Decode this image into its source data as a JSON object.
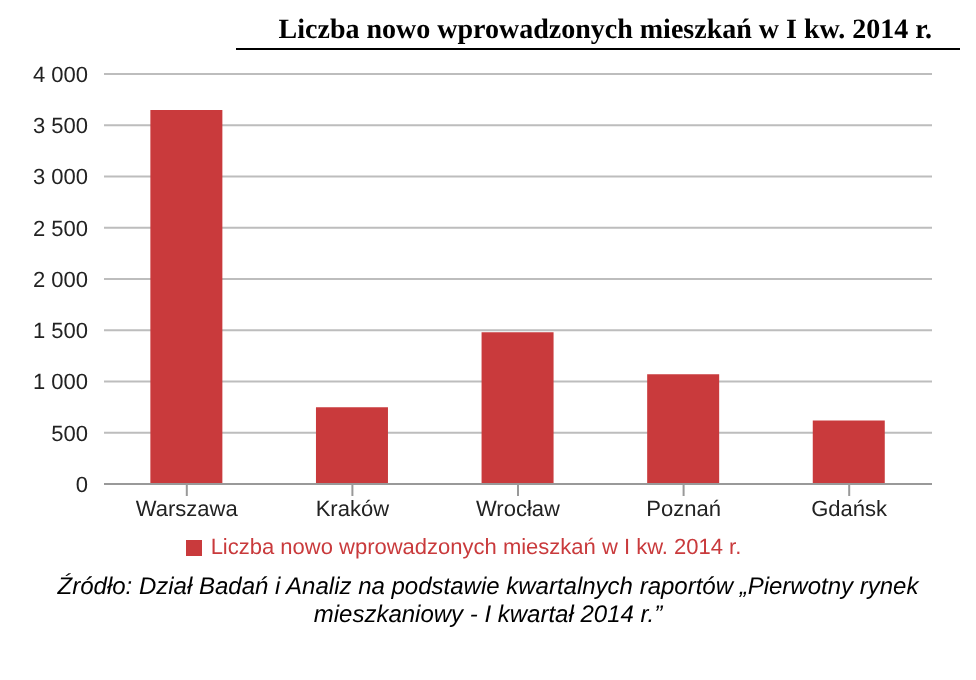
{
  "chart_data": {
    "type": "bar",
    "title": "Liczba nowo wprowadzonych mieszkań w I kw. 2014 r.",
    "categories": [
      "Warszawa",
      "Kraków",
      "Wrocław",
      "Poznań",
      "Gdańsk"
    ],
    "series": [
      {
        "name": "Liczba nowo wprowadzonych mieszkań w I kw. 2014 r.",
        "color": "#c93a3c",
        "values": [
          3650,
          750,
          1480,
          1070,
          620
        ]
      }
    ],
    "ylim": [
      0,
      4000
    ],
    "yticks": [
      0,
      {
        "value": 500,
        "label": "500"
      },
      {
        "value": 1000,
        "label": "1 000"
      },
      {
        "value": 1500,
        "label": "1 500"
      },
      {
        "value": 2000,
        "label": "2 000"
      },
      {
        "value": 2500,
        "label": "2 500"
      },
      {
        "value": 3000,
        "label": "3 000"
      },
      {
        "value": 3500,
        "label": "3 500"
      },
      {
        "value": 4000,
        "label": "4 000"
      }
    ],
    "grid": "y",
    "legend": "bottom",
    "annotations": [
      "Źródło: Dział Badań i Analiz na podstawie kwartalnych raportów „Pierwotny rynek mieszkaniowy - I kwartał 2014 r.”"
    ]
  }
}
